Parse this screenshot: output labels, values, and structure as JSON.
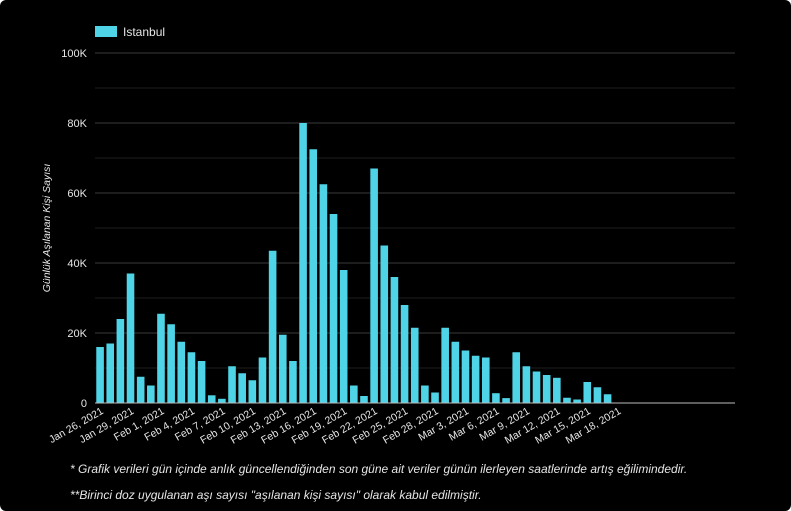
{
  "colors": {
    "background": "#000000",
    "bar": "#4fd3e6",
    "grid": "#3a3a3a",
    "text": "#e6e6e6"
  },
  "chart_data": {
    "type": "bar",
    "title": "",
    "xlabel": "",
    "ylabel": "Günlük Aşılanan Kişi Sayısı",
    "legend": {
      "position": "top-left",
      "entries": [
        "Istanbul"
      ]
    },
    "grid": true,
    "ylim": [
      0,
      100000
    ],
    "y_ticks": [
      {
        "value": 0,
        "label": "0"
      },
      {
        "value": 20000,
        "label": "20K"
      },
      {
        "value": 40000,
        "label": "40K"
      },
      {
        "value": 60000,
        "label": "60K"
      },
      {
        "value": 80000,
        "label": "80K"
      },
      {
        "value": 100000,
        "label": "100K"
      }
    ],
    "x_tick_labels": [
      {
        "index": 0,
        "label": "Jan 26, 2021"
      },
      {
        "index": 3,
        "label": "Jan 29, 2021"
      },
      {
        "index": 6,
        "label": "Feb 1, 2021"
      },
      {
        "index": 9,
        "label": "Feb 4, 2021"
      },
      {
        "index": 12,
        "label": "Feb 7, 2021"
      },
      {
        "index": 15,
        "label": "Feb 10, 2021"
      },
      {
        "index": 18,
        "label": "Feb 13, 2021"
      },
      {
        "index": 21,
        "label": "Feb 16, 2021"
      },
      {
        "index": 24,
        "label": "Feb 19, 2021"
      },
      {
        "index": 27,
        "label": "Feb 22, 2021"
      },
      {
        "index": 30,
        "label": "Feb 25, 2021"
      },
      {
        "index": 33,
        "label": "Feb 28, 2021"
      },
      {
        "index": 36,
        "label": "Mar 3, 2021"
      },
      {
        "index": 39,
        "label": "Mar 6, 2021"
      },
      {
        "index": 42,
        "label": "Mar 9, 2021"
      },
      {
        "index": 45,
        "label": "Mar 12, 2021"
      },
      {
        "index": 48,
        "label": "Mar 15, 2021"
      },
      {
        "index": 51,
        "label": "Mar 18, 2021"
      }
    ],
    "categories": [
      "Jan 26, 2021",
      "Jan 27, 2021",
      "Jan 28, 2021",
      "Jan 29, 2021",
      "Jan 30, 2021",
      "Jan 31, 2021",
      "Feb 1, 2021",
      "Feb 2, 2021",
      "Feb 3, 2021",
      "Feb 4, 2021",
      "Feb 5, 2021",
      "Feb 6, 2021",
      "Feb 7, 2021",
      "Feb 8, 2021",
      "Feb 9, 2021",
      "Feb 10, 2021",
      "Feb 11, 2021",
      "Feb 12, 2021",
      "Feb 13, 2021",
      "Feb 14, 2021",
      "Feb 15, 2021",
      "Feb 16, 2021",
      "Feb 17, 2021",
      "Feb 18, 2021",
      "Feb 19, 2021",
      "Feb 20, 2021",
      "Feb 21, 2021",
      "Feb 22, 2021",
      "Feb 23, 2021",
      "Feb 24, 2021",
      "Feb 25, 2021",
      "Feb 26, 2021",
      "Feb 27, 2021",
      "Feb 28, 2021",
      "Mar 1, 2021",
      "Mar 2, 2021",
      "Mar 3, 2021",
      "Mar 4, 2021",
      "Mar 5, 2021",
      "Mar 6, 2021",
      "Mar 7, 2021",
      "Mar 8, 2021",
      "Mar 9, 2021",
      "Mar 10, 2021",
      "Mar 11, 2021",
      "Mar 12, 2021",
      "Mar 13, 2021",
      "Mar 14, 2021",
      "Mar 15, 2021",
      "Mar 16, 2021",
      "Mar 17, 2021",
      "Mar 18, 2021"
    ],
    "series": [
      {
        "name": "Istanbul",
        "values": [
          16000,
          17000,
          24000,
          37000,
          7500,
          5000,
          25500,
          22500,
          17500,
          14500,
          12000,
          2200,
          1200,
          10500,
          8500,
          6500,
          13000,
          43500,
          19500,
          12000,
          80000,
          72500,
          62500,
          54000,
          38000,
          5000,
          2000,
          67000,
          45000,
          36000,
          28000,
          21500,
          5000,
          3000,
          21500,
          17500,
          15000,
          13500,
          13000,
          2800,
          1400,
          14500,
          10500,
          9000,
          8000,
          7200,
          1500,
          1000,
          6000,
          4500,
          2500,
          0
        ]
      }
    ]
  },
  "footnotes": {
    "note1": "* Grafik verileri gün içinde anlık güncellendiğinden son güne ait veriler günün ilerleyen saatlerinde artış eğilimindedir.",
    "note2": "**Birinci doz uygulanan aşı sayısı \"aşılanan kişi sayısı\" olarak kabul edilmiştir."
  }
}
